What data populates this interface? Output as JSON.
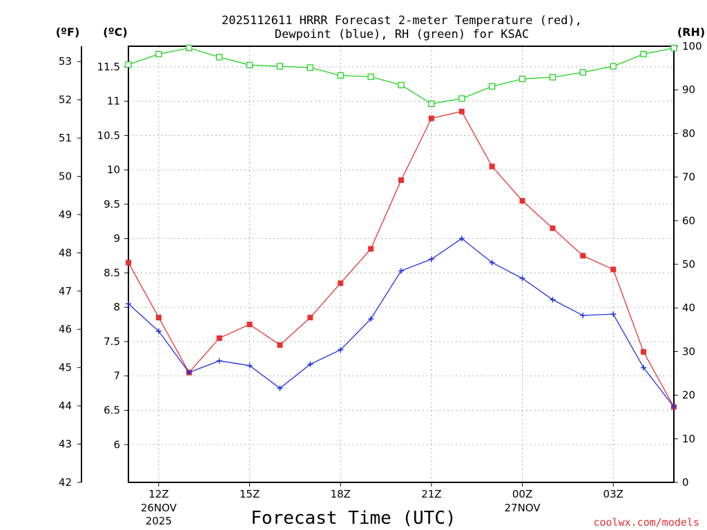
{
  "colors": {
    "temperature": "#e83030",
    "dewpoint": "#2030e0",
    "rh": "#20d020",
    "grid": "#aaaaaa",
    "credit": "#e03030"
  },
  "chart_data": {
    "type": "line",
    "title_line1": "2025112611 HRRR Forecast 2-meter Temperature (red),",
    "title_line2": "Dewpoint (blue), RH (green) for KSAC",
    "xlabel": "Forecast Time (UTC)",
    "credit": "coolwx.com/models",
    "units": {
      "fahrenheit": "(ºF)",
      "celsius": "(ºC)",
      "rh": "(RH)"
    },
    "x_hours": [
      11,
      12,
      13,
      14,
      15,
      16,
      17,
      18,
      19,
      20,
      21,
      22,
      23,
      24,
      25,
      26,
      27,
      28,
      29
    ],
    "x_ticks": [
      {
        "hour": 12,
        "label": "12Z",
        "date": "26NOV",
        "year": "2025"
      },
      {
        "hour": 15,
        "label": "15Z"
      },
      {
        "hour": 18,
        "label": "18Z"
      },
      {
        "hour": 21,
        "label": "21Z"
      },
      {
        "hour": 24,
        "label": "00Z",
        "date": "27NOV"
      },
      {
        "hour": 27,
        "label": "03Z"
      }
    ],
    "celsius_axis": {
      "min": 5.45,
      "max": 11.8,
      "ticks": [
        6,
        6.5,
        7,
        7.5,
        8,
        8.5,
        9,
        9.5,
        10,
        10.5,
        11,
        11.5
      ]
    },
    "fahrenheit_axis": {
      "min": 42,
      "max": 53.4,
      "ticks": [
        42,
        43,
        44,
        45,
        46,
        47,
        48,
        49,
        50,
        51,
        52,
        53
      ]
    },
    "rh_axis": {
      "min": 0,
      "max": 100,
      "ticks": [
        0,
        10,
        20,
        30,
        40,
        50,
        60,
        70,
        80,
        90,
        100
      ]
    },
    "series": [
      {
        "name": "Temperature",
        "axis": "celsius",
        "marker": "square-filled",
        "values": [
          8.65,
          7.85,
          7.05,
          7.55,
          7.75,
          7.45,
          7.85,
          8.35,
          8.85,
          9.85,
          10.75,
          10.85,
          10.05,
          9.55,
          9.15,
          8.75,
          8.55,
          7.35,
          6.55
        ]
      },
      {
        "name": "Dewpoint",
        "axis": "celsius",
        "marker": "plus",
        "values": [
          8.05,
          7.65,
          7.05,
          7.22,
          7.15,
          6.82,
          7.17,
          7.38,
          7.83,
          8.53,
          8.7,
          9.0,
          8.65,
          8.42,
          8.11,
          7.88,
          7.9,
          7.12,
          6.55
        ]
      },
      {
        "name": "RH",
        "axis": "rh",
        "marker": "square-open",
        "values": [
          95.8,
          98.2,
          99.6,
          97.5,
          95.7,
          95.4,
          95.1,
          93.3,
          93.0,
          91.1,
          86.8,
          88.0,
          90.8,
          92.5,
          92.9,
          94.0,
          95.4,
          98.2,
          99.6
        ]
      }
    ]
  }
}
